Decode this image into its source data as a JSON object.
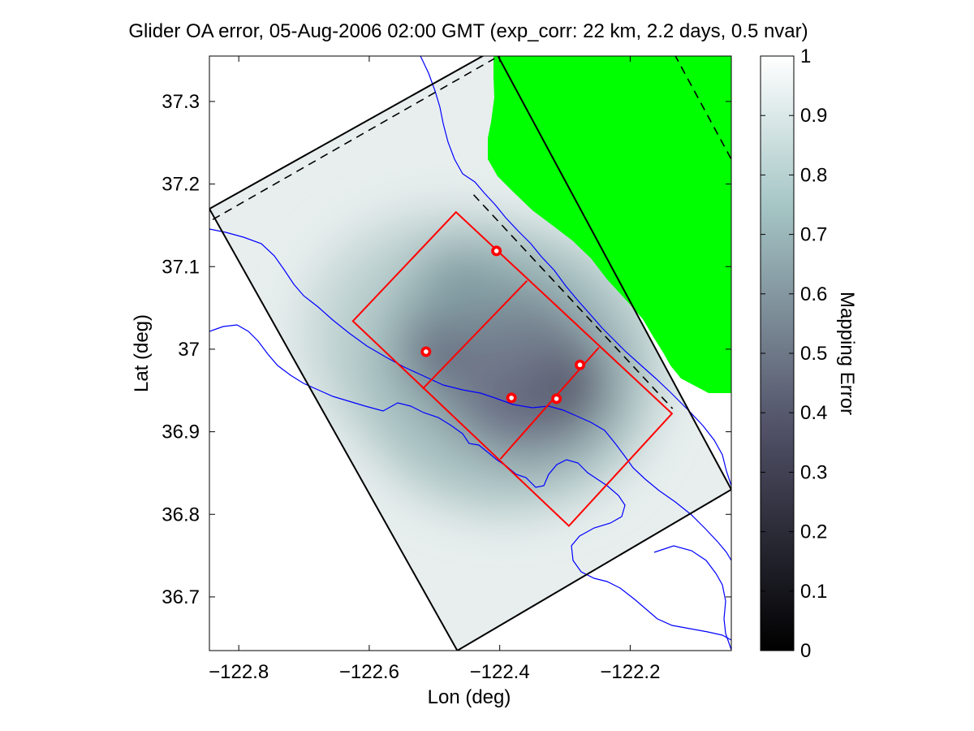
{
  "chart_data": {
    "type": "heatmap",
    "title": "Glider OA error, 05-Aug-2006 02:00 GMT (exp_corr: 22 km, 2.2 days, 0.5 nvar)",
    "xlabel": "Lon (deg)",
    "ylabel": "Lat (deg)",
    "xlim": [
      -122.845,
      -122.045
    ],
    "ylim": [
      36.635,
      37.355
    ],
    "xticks": [
      -122.8,
      -122.6,
      -122.4,
      -122.2
    ],
    "xtick_labels": [
      "−122.8",
      "−122.6",
      "−122.4",
      "−122.2"
    ],
    "yticks": [
      36.7,
      36.8,
      36.9,
      37.0,
      37.1,
      37.2,
      37.3
    ],
    "ytick_labels": [
      "36.7",
      "36.8",
      "36.9",
      "37",
      "37.1",
      "37.2",
      "37.3"
    ],
    "colorbar": {
      "label": "Mapping Error",
      "range": [
        0,
        1
      ],
      "ticks": [
        0,
        0.1,
        0.2,
        0.3,
        0.4,
        0.5,
        0.6,
        0.7,
        0.8,
        0.9,
        1
      ],
      "tick_labels": [
        "0",
        "0.1",
        "0.2",
        "0.3",
        "0.4",
        "0.5",
        "0.6",
        "0.7",
        "0.8",
        "0.9",
        "1"
      ],
      "colormap": "gray-bone"
    },
    "glider_positions": [
      {
        "lon": -122.405,
        "lat": 37.119
      },
      {
        "lon": -122.513,
        "lat": 36.997
      },
      {
        "lon": -122.382,
        "lat": 36.941
      },
      {
        "lon": -122.313,
        "lat": 36.94
      },
      {
        "lon": -122.277,
        "lat": 36.981
      }
    ],
    "outer_domain_polygon": [
      {
        "lon": -122.845,
        "lat": 37.17
      },
      {
        "lon": -122.408,
        "lat": 37.363
      },
      {
        "lon": -122.045,
        "lat": 36.83
      },
      {
        "lon": -122.465,
        "lat": 36.635
      }
    ],
    "red_box_outline": [
      {
        "lon": -122.625,
        "lat": 37.034
      },
      {
        "lon": -122.467,
        "lat": 37.166
      },
      {
        "lon": -122.136,
        "lat": 36.922
      },
      {
        "lon": -122.294,
        "lat": 36.786
      }
    ],
    "red_box_dividers": [
      [
        {
          "lon": -122.518,
          "lat": 36.952
        },
        {
          "lon": -122.358,
          "lat": 37.083
        }
      ],
      [
        {
          "lon": -122.399,
          "lat": 36.867
        },
        {
          "lon": -122.248,
          "lat": 37.002
        }
      ]
    ],
    "dashed_lines": [
      [
        {
          "lon": -122.84,
          "lat": 37.157
        },
        {
          "lon": -122.408,
          "lat": 37.352
        }
      ],
      [
        {
          "lon": -122.44,
          "lat": 37.187
        },
        {
          "lon": -122.135,
          "lat": 36.928
        }
      ],
      [
        {
          "lon": -122.132,
          "lat": 37.357
        },
        {
          "lon": -122.045,
          "lat": 37.23
        }
      ]
    ],
    "land_color": "#00ff00",
    "coastline_color": "#0000ff",
    "marker_color": "#ff0000"
  }
}
